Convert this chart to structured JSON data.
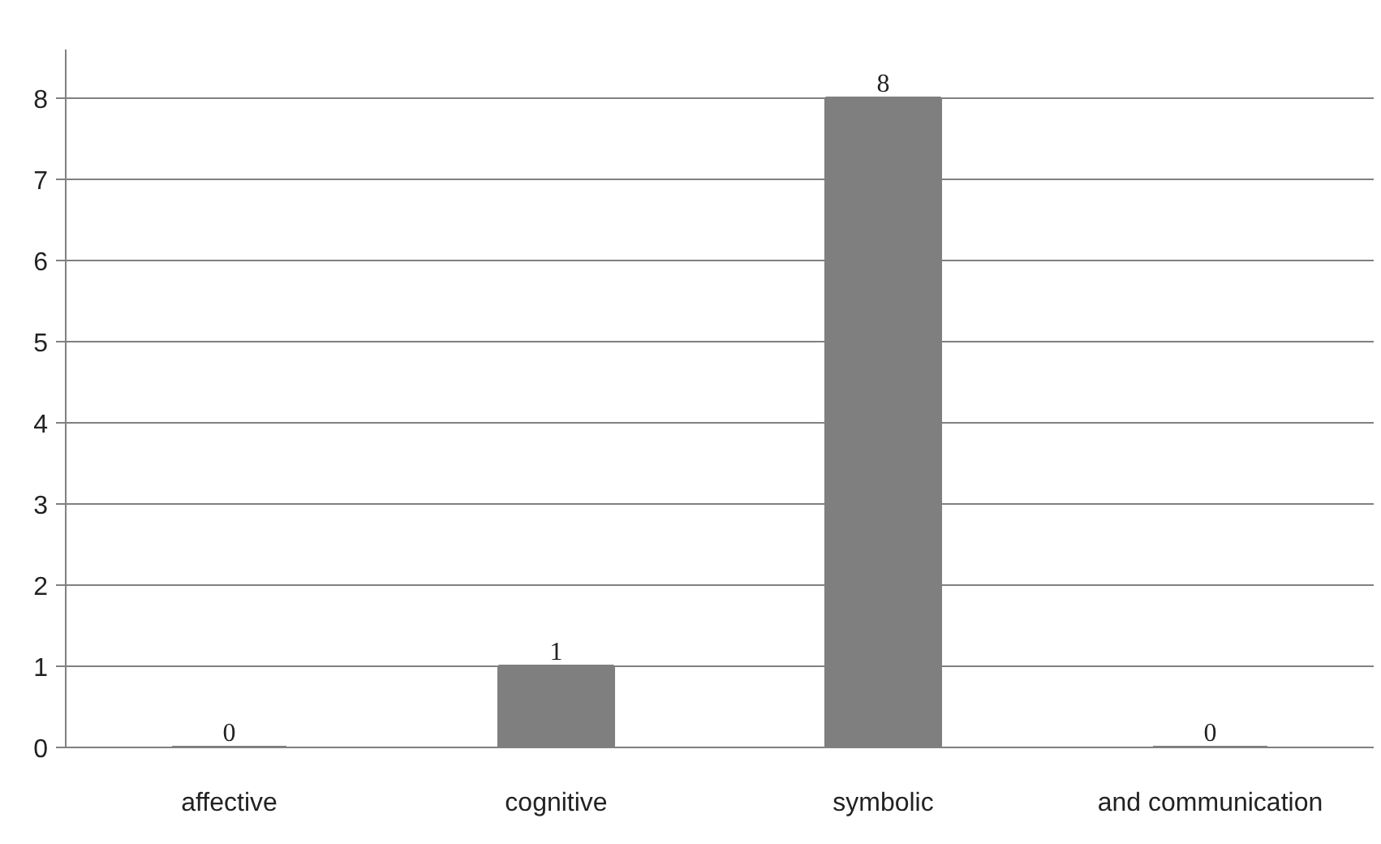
{
  "chart_data": {
    "type": "bar",
    "categories": [
      "affective",
      "cognitive",
      "symbolic",
      "and communication"
    ],
    "values": [
      0,
      1,
      8,
      0
    ],
    "color": "#7f7f7f",
    "ylim": [
      0,
      8.6
    ],
    "yticks": [
      0,
      1,
      2,
      3,
      4,
      5,
      6,
      7,
      8
    ],
    "grid": "y",
    "data_labels": true
  }
}
